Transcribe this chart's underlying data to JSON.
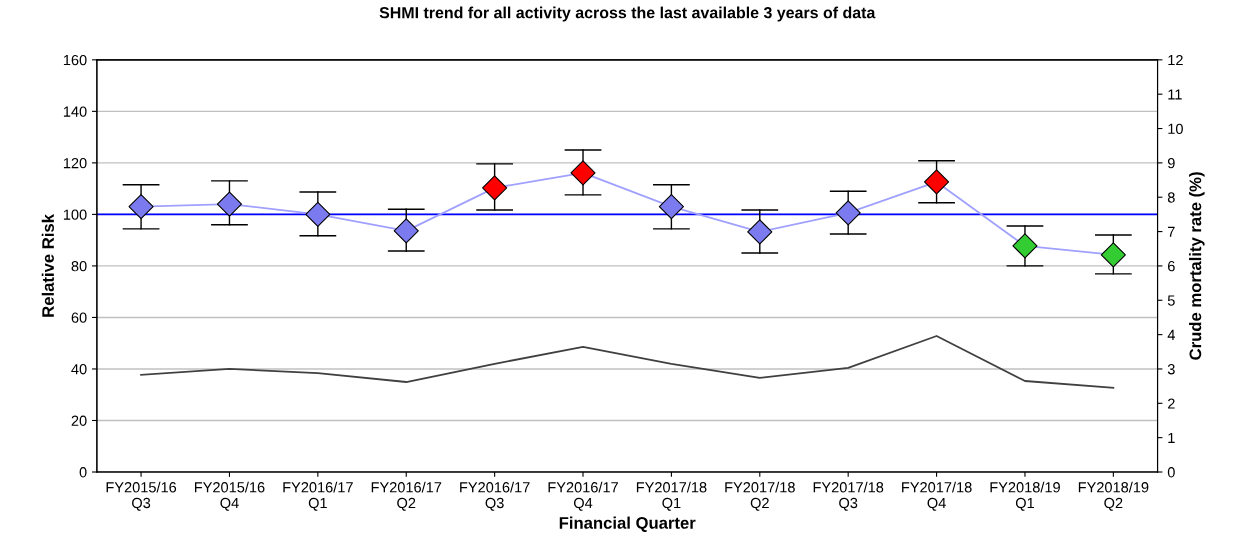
{
  "chart_data": {
    "type": "line",
    "title": "SHMI trend for all activity across the last available 3 years of data",
    "xlabel": "Financial Quarter",
    "ylabel": "Relative Risk",
    "y2label": "Crude mortality rate (%)",
    "categories": [
      "FY2015/16\nQ3",
      "FY2015/16\nQ4",
      "FY2016/17\nQ1",
      "FY2016/17\nQ2",
      "FY2016/17\nQ3",
      "FY2016/17\nQ4",
      "FY2017/18\nQ1",
      "FY2017/18\nQ2",
      "FY2017/18\nQ3",
      "FY2017/18\nQ4",
      "FY2018/19\nQ1",
      "FY2018/19\nQ2"
    ],
    "series": [
      {
        "color": "#a0a0ff",
        "marker": "diamond",
        "values": [
          103,
          104,
          100,
          93.6,
          110.3,
          116.1,
          103,
          93.2,
          100.6,
          112.6,
          87.8,
          84.3
        ],
        "colors": [
          "#7b7bef",
          "#7b7bef",
          "#7b7bef",
          "#7b7bef",
          "#ff0000",
          "#ff0000",
          "#7b7bef",
          "#7b7bef",
          "#7b7bef",
          "#ff0000",
          "#33cc33",
          "#33cc33"
        ],
        "errors": [
          [
            94.4,
            111.5
          ],
          [
            96,
            113
          ],
          [
            91.7,
            108.7
          ],
          [
            85.8,
            102
          ],
          [
            101.7,
            119.6
          ],
          [
            107.6,
            125
          ],
          [
            94.4,
            111.5
          ],
          [
            85,
            101.7
          ],
          [
            92.4,
            109
          ],
          [
            104.5,
            120.8
          ],
          [
            80,
            95.5
          ],
          [
            76.9,
            92
          ]
        ]
      },
      {
        "axis": "y2",
        "color": "#404040",
        "marker": "none",
        "values": [
          2.83,
          3.0,
          2.88,
          2.62,
          3.15,
          3.64,
          3.15,
          2.74,
          3.03,
          3.96,
          2.65,
          2.45
        ]
      }
    ],
    "ylim": [
      0,
      160
    ],
    "yticks": [
      0,
      20,
      40,
      60,
      80,
      100,
      120,
      140,
      160
    ],
    "y2lim": [
      0,
      12
    ],
    "y2ticks": [
      0,
      1,
      2,
      3,
      4,
      5,
      6,
      7,
      8,
      9,
      10,
      11,
      12
    ],
    "ref_lines": [
      {
        "axis": "y",
        "value": 100,
        "color": "#0000ff",
        "line_style": "solid"
      }
    ],
    "grid": "y",
    "legend": false
  }
}
